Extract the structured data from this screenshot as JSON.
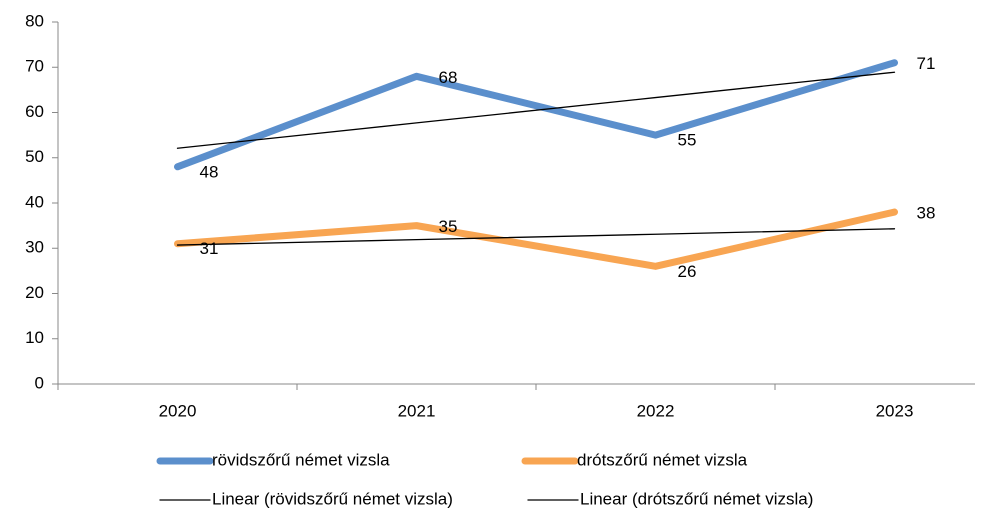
{
  "chart_data": {
    "type": "line",
    "categories": [
      "2020",
      "2021",
      "2022",
      "2023"
    ],
    "series": [
      {
        "name": "rövidszőrű német vizsla",
        "color": "#5b8fcc",
        "values": [
          48,
          68,
          55,
          71
        ]
      },
      {
        "name": "drótszőrű német vizsla",
        "color": "#f8a552",
        "values": [
          31,
          35,
          26,
          38
        ]
      }
    ],
    "trendlines": [
      {
        "name": "Linear (rövidszőrű német vizsla)",
        "color": "#000000",
        "values": [
          52.1,
          57.7,
          63.3,
          68.9
        ]
      },
      {
        "name": "Linear (drótszőrű német vizsla)",
        "color": "#000000",
        "values": [
          30.7,
          31.9,
          33.1,
          34.3
        ]
      }
    ],
    "ylim": [
      0,
      80
    ],
    "yticks": [
      0,
      10,
      20,
      30,
      40,
      50,
      60,
      70,
      80
    ],
    "grid": false,
    "legend": "bottom"
  }
}
